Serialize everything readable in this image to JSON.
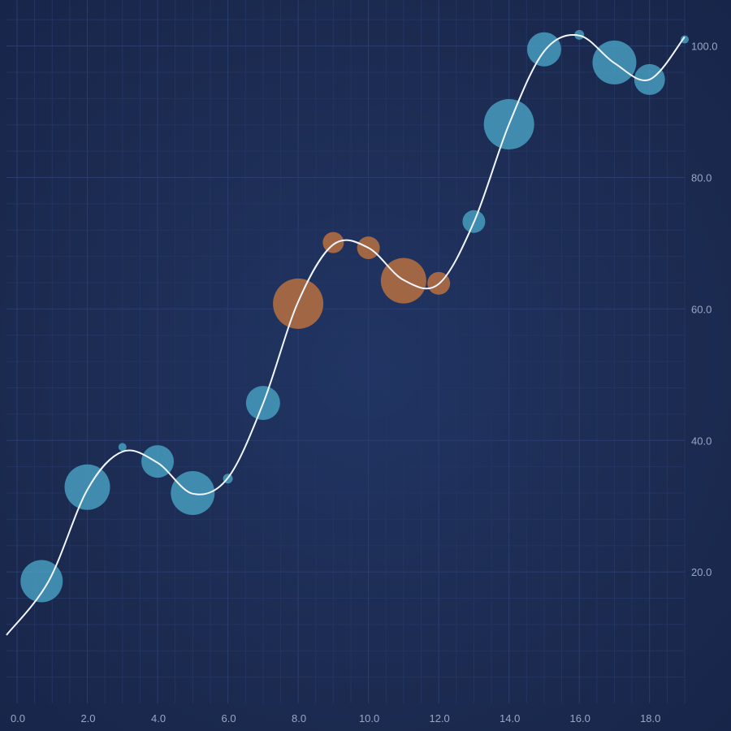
{
  "chart_data": {
    "type": "scatter",
    "title": "",
    "xlabel": "",
    "ylabel": "",
    "xlim": [
      -0.3,
      19.0
    ],
    "ylim": [
      0,
      107
    ],
    "x_ticks": [
      0,
      2,
      4,
      6,
      8,
      10,
      12,
      14,
      16,
      18
    ],
    "x_tick_labels": [
      "0.0",
      "2.0",
      "4.0",
      "6.0",
      "8.0",
      "10.0",
      "12.0",
      "14.0",
      "16.0",
      "18.0"
    ],
    "y_ticks": [
      20,
      40,
      60,
      80,
      100
    ],
    "y_tick_labels": [
      "20.0",
      "40.0",
      "60.0",
      "80.0",
      "100.0"
    ],
    "y_axis_position": "right",
    "grid": true,
    "colors": {
      "bubble_default": "#4aa6c8",
      "bubble_highlight": "#b8703f",
      "line": "#f2f6ff",
      "grid_major": "#2a3d6e",
      "grid_minor": "#223461"
    },
    "series": [
      {
        "type": "line",
        "smooth": true,
        "x": [
          -0.3,
          0.9,
          2,
          3,
          4,
          5,
          6,
          7,
          8,
          9,
          10,
          11,
          12,
          13,
          14,
          15,
          16,
          17,
          18,
          19
        ],
        "y": [
          10.4,
          18.6,
          32.5,
          38.3,
          36.6,
          31.9,
          34.3,
          45.6,
          61.1,
          69.8,
          69.3,
          64.4,
          63.8,
          73.2,
          88.1,
          99.2,
          101.6,
          97.4,
          94.9,
          101.4
        ]
      },
      {
        "type": "bubble",
        "x": [
          0.7,
          2,
          3,
          4,
          5,
          6,
          7,
          8,
          9,
          10,
          11,
          12,
          13,
          14,
          15,
          16,
          17,
          18,
          19
        ],
        "y": [
          18.6,
          32.9,
          39.0,
          36.8,
          32.0,
          34.2,
          45.7,
          60.8,
          70.1,
          69.3,
          64.3,
          63.9,
          73.3,
          88.1,
          99.5,
          101.7,
          97.5,
          94.9,
          101.0
        ],
        "size": [
          26,
          28,
          5,
          20,
          27,
          6,
          21,
          31,
          13,
          14,
          28,
          14,
          14,
          31,
          21,
          6,
          27,
          19,
          5
        ],
        "highlight": [
          false,
          false,
          false,
          false,
          false,
          false,
          false,
          true,
          true,
          true,
          true,
          true,
          false,
          false,
          false,
          false,
          false,
          false,
          false
        ]
      }
    ]
  }
}
